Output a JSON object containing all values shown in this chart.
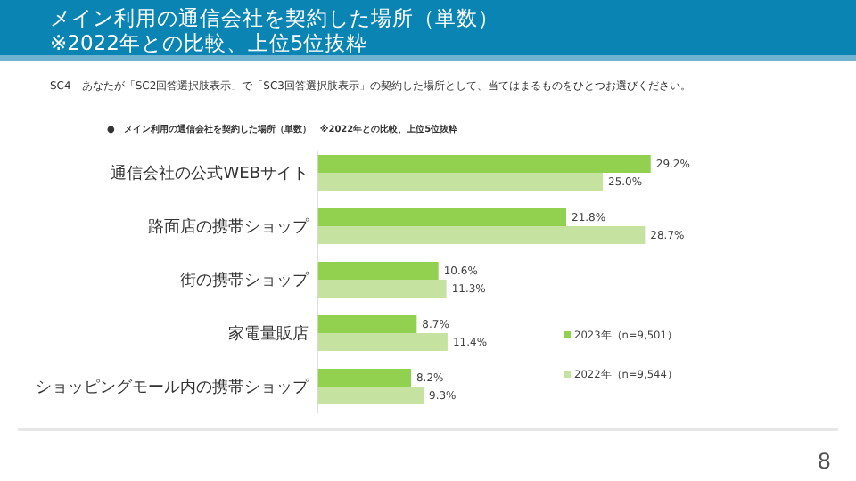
{
  "chart_data": {
    "type": "bar",
    "orientation": "horizontal",
    "title": "メイン利用の通信会社を契約した場所（単数）",
    "subtitle": "※2022年との比較、上位5位抜粋",
    "categories": [
      "通信会社の公式WEBサイト",
      "路面店の携帯ショップ",
      "街の携帯ショップ",
      "家電量販店",
      "ショッピングモール内の携帯ショップ"
    ],
    "series": [
      {
        "name": "2023年（n=9,501）",
        "color": "#92d050",
        "values": [
          29.2,
          21.8,
          10.6,
          8.7,
          8.2
        ],
        "value_labels": [
          "29.2%",
          "21.8%",
          "10.6%",
          "8.7%",
          "8.2%"
        ]
      },
      {
        "name": "2022年（n=9,544）",
        "color": "#c5e2a0",
        "values": [
          25.0,
          28.7,
          11.3,
          11.4,
          9.3
        ],
        "value_labels": [
          "25.0%",
          "28.7%",
          "11.3%",
          "11.4%",
          "9.3%"
        ]
      }
    ],
    "legend": "right",
    "annotations": [
      "SC4　あなたが「SC2回答選択肢表示」で「SC3回答選択肢表示」の契約した場所として、当てはまるものをひとつお選びください。",
      "●　メイン利用の通信会社を契約した場所（単数）　※2022年との比較、上位5位抜粋",
      "8"
    ]
  }
}
